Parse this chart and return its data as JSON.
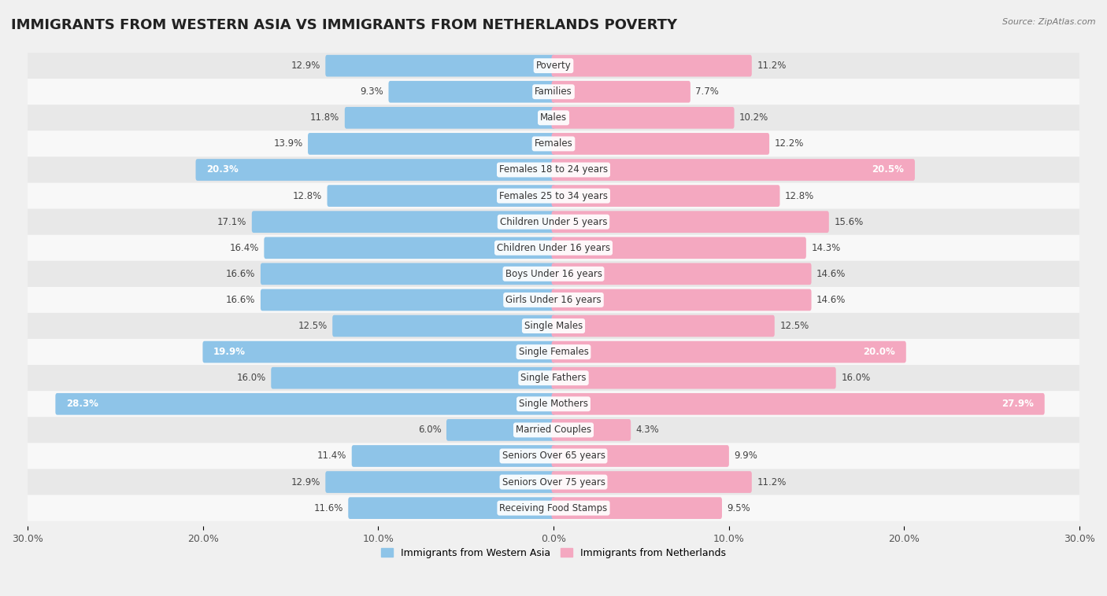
{
  "title": "IMMIGRANTS FROM WESTERN ASIA VS IMMIGRANTS FROM NETHERLANDS POVERTY",
  "source": "Source: ZipAtlas.com",
  "categories": [
    "Poverty",
    "Families",
    "Males",
    "Females",
    "Females 18 to 24 years",
    "Females 25 to 34 years",
    "Children Under 5 years",
    "Children Under 16 years",
    "Boys Under 16 years",
    "Girls Under 16 years",
    "Single Males",
    "Single Females",
    "Single Fathers",
    "Single Mothers",
    "Married Couples",
    "Seniors Over 65 years",
    "Seniors Over 75 years",
    "Receiving Food Stamps"
  ],
  "left_values": [
    12.9,
    9.3,
    11.8,
    13.9,
    20.3,
    12.8,
    17.1,
    16.4,
    16.6,
    16.6,
    12.5,
    19.9,
    16.0,
    28.3,
    6.0,
    11.4,
    12.9,
    11.6
  ],
  "right_values": [
    11.2,
    7.7,
    10.2,
    12.2,
    20.5,
    12.8,
    15.6,
    14.3,
    14.6,
    14.6,
    12.5,
    20.0,
    16.0,
    27.9,
    4.3,
    9.9,
    11.2,
    9.5
  ],
  "left_color": "#8ec4e8",
  "right_color": "#f4a8c0",
  "left_label": "Immigrants from Western Asia",
  "right_label": "Immigrants from Netherlands",
  "xlim": 30.0,
  "background_color": "#f0f0f0",
  "row_colors": [
    "#e8e8e8",
    "#f8f8f8"
  ],
  "title_fontsize": 13,
  "label_fontsize": 8.5,
  "value_fontsize": 8.5,
  "axis_fontsize": 9
}
